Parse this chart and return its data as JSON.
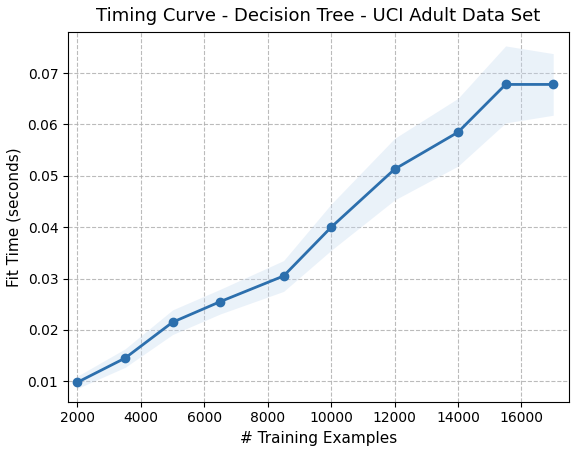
{
  "title": "Timing Curve - Decision Tree - UCI Adult Data Set",
  "xlabel": "# Training Examples",
  "ylabel": "Fit Time (seconds)",
  "x": [
    2000,
    3500,
    5000,
    6500,
    8500,
    10000,
    12000,
    14000,
    15500,
    17000
  ],
  "y": [
    0.0098,
    0.0145,
    0.0215,
    0.0255,
    0.0305,
    0.04,
    0.0513,
    0.0585,
    0.0678,
    0.0678
  ],
  "y_std": [
    0.0004,
    0.0006,
    0.0008,
    0.0008,
    0.001,
    0.0015,
    0.002,
    0.0022,
    0.0025,
    0.002
  ],
  "line_color": "#2c6fad",
  "fill_color": "#c5daf0",
  "marker": "o",
  "markersize": 6,
  "linewidth": 2,
  "xlim": [
    1700,
    17500
  ],
  "ylim": [
    0.006,
    0.078
  ],
  "yticks": [
    0.01,
    0.02,
    0.03,
    0.04,
    0.05,
    0.06,
    0.07
  ],
  "xticks": [
    2000,
    4000,
    6000,
    8000,
    10000,
    12000,
    14000,
    16000
  ],
  "grid_color": "#b0b0b0",
  "grid_style": "--",
  "background_color": "#ffffff",
  "title_fontsize": 13,
  "label_fontsize": 11,
  "tick_fontsize": 10,
  "fill_alpha": 0.35,
  "fill_std_multiplier": 3
}
